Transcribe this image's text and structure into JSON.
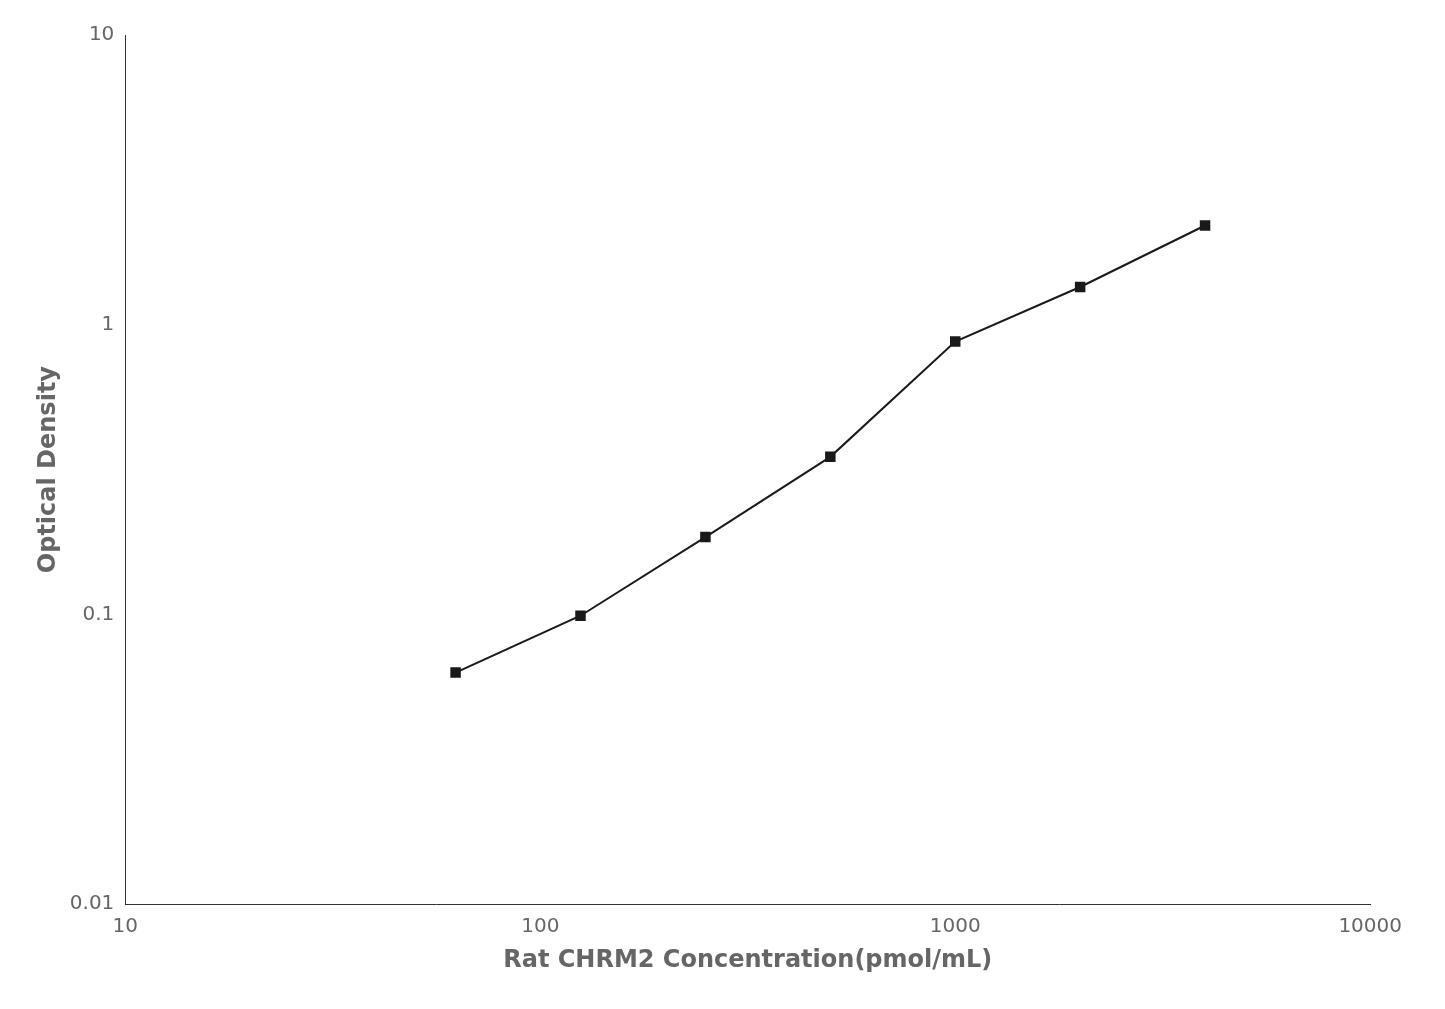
{
  "chart_data": {
    "type": "line",
    "x": [
      62.5,
      125,
      250,
      500,
      1000,
      2000,
      4000
    ],
    "values": [
      0.063,
      0.099,
      0.185,
      0.35,
      0.875,
      1.35,
      2.2
    ],
    "xlabel": "Rat CHRM2 Concentration(pmol/mL)",
    "ylabel": "Optical Density",
    "xlim": [
      10,
      10000
    ],
    "ylim": [
      0.01,
      10
    ],
    "xticks": [
      10,
      100,
      1000,
      10000
    ],
    "yticks": [
      0.01,
      0.1,
      1,
      10
    ],
    "log": true,
    "grid": false,
    "color": "#1a1a1a",
    "marker": "square"
  }
}
